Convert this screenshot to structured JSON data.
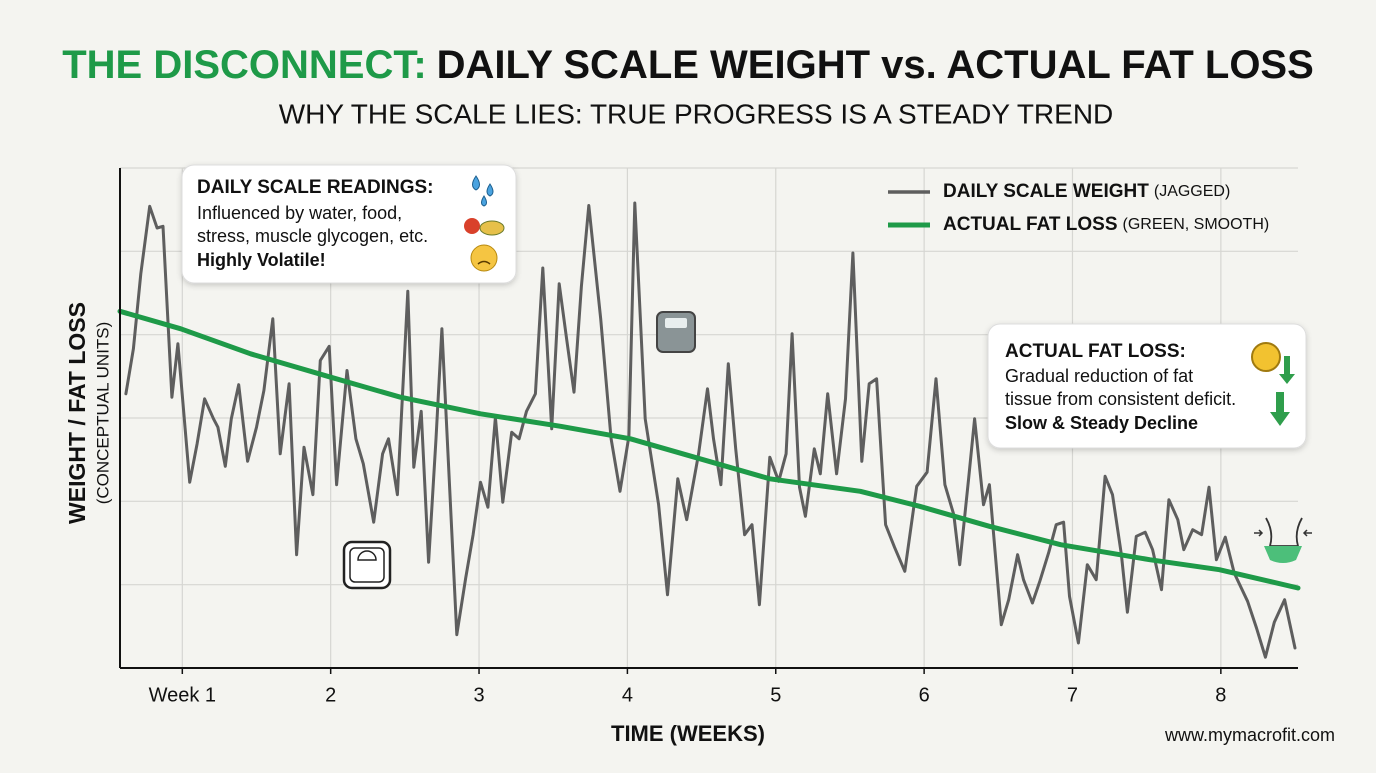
{
  "chart_data": {
    "type": "line",
    "title_lead": "THE DISCONNECT:",
    "title": "DAILY SCALE WEIGHT vs. ACTUAL FAT LOSS",
    "subtitle": "WHY THE SCALE LIES: TRUE PROGRESS IS A STEADY TREND",
    "y_label": "WEIGHT / FAT LOSS",
    "y_sublabel": "(CONCEPTUAL UNITS)",
    "x_label": "TIME (WEEKS)",
    "footer": "www.mymacrofit.com",
    "xlim": [
      0.58,
      8.52
    ],
    "xticks": [
      {
        "value": 1,
        "label": "Week 1"
      },
      2,
      3,
      4,
      5,
      6,
      7,
      8
    ],
    "ylim": [
      0,
      6
    ],
    "yticks": [
      1,
      2,
      3,
      4,
      5,
      6
    ],
    "grid": true,
    "legend": "top-right",
    "series": [
      {
        "name": "DAILY SCALE WEIGHT",
        "legend_suffix": "(JAGGED)",
        "color": "#5e5e5e",
        "x": [
          0.62,
          0.67,
          0.72,
          0.78,
          0.83,
          0.87,
          0.93,
          0.97,
          1.05,
          1.1,
          1.15,
          1.21,
          1.24,
          1.29,
          1.33,
          1.38,
          1.44,
          1.5,
          1.55,
          1.61,
          1.66,
          1.72,
          1.77,
          1.82,
          1.88,
          1.93,
          1.99,
          2.04,
          2.11,
          2.17,
          2.22,
          2.29,
          2.35,
          2.39,
          2.45,
          2.52,
          2.56,
          2.61,
          2.66,
          2.71,
          2.75,
          2.85,
          2.91,
          2.96,
          3.01,
          3.06,
          3.11,
          3.16,
          3.22,
          3.27,
          3.32,
          3.38,
          3.43,
          3.49,
          3.54,
          3.59,
          3.64,
          3.69,
          3.74,
          3.82,
          3.89,
          3.95,
          4.01,
          4.05,
          4.12,
          4.21,
          4.27,
          4.34,
          4.4,
          4.48,
          4.54,
          4.58,
          4.63,
          4.68,
          4.73,
          4.79,
          4.84,
          4.89,
          4.96,
          5.02,
          5.07,
          5.11,
          5.16,
          5.2,
          5.26,
          5.3,
          5.35,
          5.41,
          5.47,
          5.52,
          5.58,
          5.63,
          5.68,
          5.74,
          5.8,
          5.87,
          5.95,
          6.02,
          6.08,
          6.14,
          6.2,
          6.24,
          6.3,
          6.34,
          6.4,
          6.44,
          6.52,
          6.57,
          6.63,
          6.67,
          6.73,
          6.78,
          6.84,
          6.89,
          6.94,
          6.98,
          7.04,
          7.1,
          7.16,
          7.22,
          7.27,
          7.33,
          7.37,
          7.43,
          7.49,
          7.54,
          7.6,
          7.65,
          7.71,
          7.75,
          7.81,
          7.87,
          7.92,
          7.97,
          8.03,
          8.09,
          8.18,
          8.24,
          8.3,
          8.36,
          8.43,
          8.5
        ],
        "values": [
          3.29,
          3.83,
          4.73,
          5.54,
          5.28,
          5.3,
          3.25,
          3.89,
          2.23,
          2.69,
          3.23,
          2.99,
          2.89,
          2.42,
          2.99,
          3.4,
          2.48,
          2.89,
          3.33,
          4.19,
          2.57,
          3.41,
          1.36,
          2.65,
          2.08,
          3.69,
          3.86,
          2.2,
          3.57,
          2.75,
          2.45,
          1.75,
          2.57,
          2.75,
          2.08,
          4.52,
          2.41,
          3.08,
          1.27,
          2.75,
          4.07,
          0.4,
          1.08,
          1.6,
          2.23,
          1.93,
          3.01,
          1.99,
          2.83,
          2.75,
          3.08,
          3.29,
          4.8,
          2.87,
          4.61,
          3.95,
          3.31,
          4.58,
          5.55,
          4.19,
          2.75,
          2.12,
          2.78,
          5.58,
          2.99,
          1.96,
          0.88,
          2.27,
          1.78,
          2.57,
          3.35,
          2.75,
          2.2,
          3.65,
          2.63,
          1.6,
          1.72,
          0.76,
          2.53,
          2.24,
          2.57,
          4.01,
          2.17,
          1.82,
          2.63,
          2.33,
          3.29,
          2.33,
          3.23,
          4.98,
          2.48,
          3.41,
          3.47,
          1.72,
          1.45,
          1.16,
          2.18,
          2.35,
          3.47,
          2.2,
          1.84,
          1.24,
          2.27,
          2.99,
          1.96,
          2.2,
          0.52,
          0.82,
          1.36,
          1.06,
          0.78,
          1.04,
          1.39,
          1.72,
          1.75,
          0.86,
          0.3,
          1.24,
          1.06,
          2.3,
          2.08,
          1.36,
          0.67,
          1.58,
          1.63,
          1.42,
          0.94,
          2.02,
          1.78,
          1.42,
          1.66,
          1.6,
          2.17,
          1.3,
          1.57,
          1.14,
          0.8,
          0.48,
          0.13,
          0.55,
          0.82,
          0.24
        ]
      },
      {
        "name": "ACTUAL FAT LOSS",
        "legend_suffix": "(GREEN, SMOOTH)",
        "color": "#1e9a48",
        "x": [
          0.58,
          0.99,
          1.46,
          2.0,
          2.47,
          3.01,
          3.55,
          4.02,
          4.49,
          4.96,
          5.57,
          5.97,
          6.44,
          6.92,
          7.52,
          7.99,
          8.52
        ],
        "values": [
          4.28,
          4.07,
          3.77,
          3.49,
          3.25,
          3.05,
          2.9,
          2.75,
          2.51,
          2.27,
          2.12,
          1.94,
          1.7,
          1.48,
          1.3,
          1.18,
          0.96
        ]
      }
    ],
    "annotations": [
      {
        "heading": "DAILY SCALE READINGS:",
        "lines": [
          "Influenced by water, food,",
          "stress, muscle glycogen, etc."
        ],
        "emphasis": "Highly Volatile!"
      },
      {
        "heading": "ACTUAL FAT LOSS:",
        "lines": [
          "Gradual reduction of fat",
          "tissue from consistent deficit."
        ],
        "emphasis": "Slow & Steady Decline"
      }
    ]
  }
}
